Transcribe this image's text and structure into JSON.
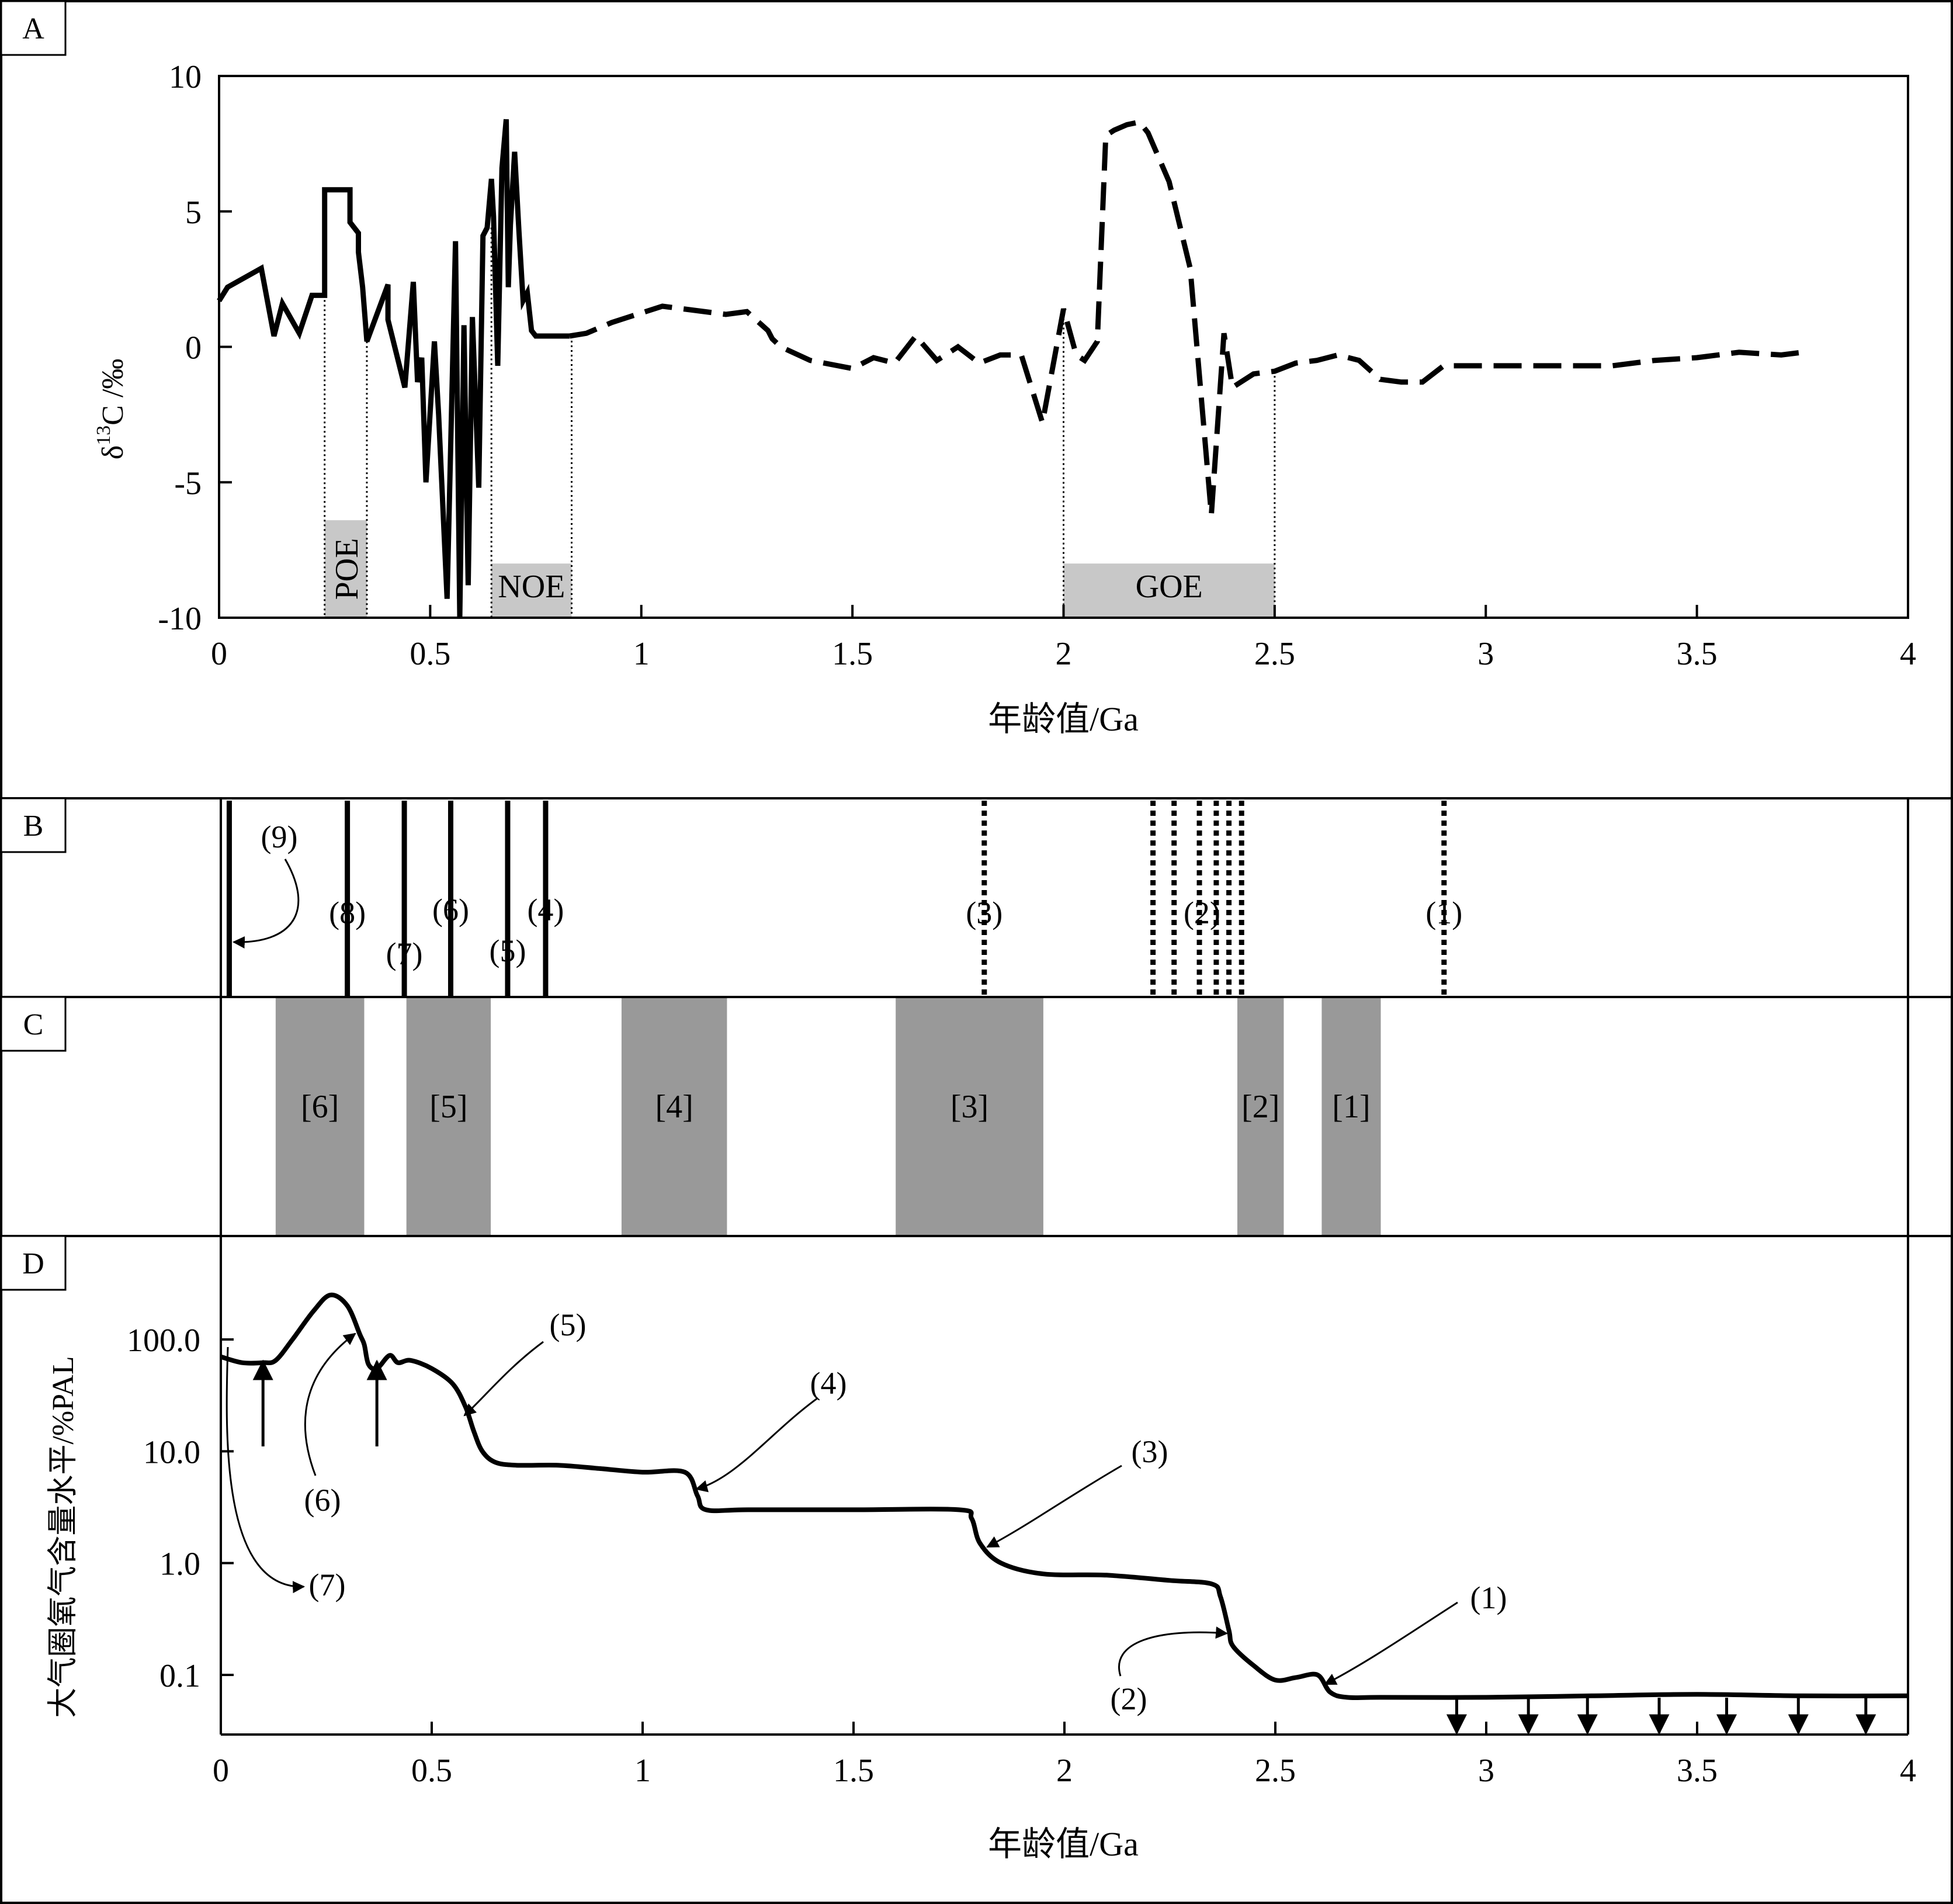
{
  "panels": {
    "a": {
      "tag": "A"
    },
    "b": {
      "tag": "B"
    },
    "c": {
      "tag": "C"
    },
    "d": {
      "tag": "D"
    }
  },
  "chart_data": [
    {
      "panel": "A",
      "type": "line",
      "xlabel": "年龄值/Ga",
      "ylabel": "δ¹³C /‰",
      "ylabel_main": "δ",
      "ylabel_sup": "13",
      "ylabel_rest": "C /‰",
      "xlim": [
        0,
        4
      ],
      "ylim": [
        -10,
        10
      ],
      "xticks": [
        0,
        0.5,
        1,
        1.5,
        2,
        2.5,
        3,
        3.5,
        4
      ],
      "xtick_labels": [
        "0",
        "0.5",
        "1",
        "1.5",
        "2",
        "2.5",
        "3",
        "3.5",
        "4"
      ],
      "yticks": [
        -10,
        -5,
        0,
        5,
        10
      ],
      "ytick_labels": [
        "-10",
        "-5",
        "0",
        "5",
        "10"
      ],
      "bands": [
        {
          "label": "POE",
          "x0": 0.25,
          "x1": 0.35,
          "y_top": -6.4,
          "vertical_label": true
        },
        {
          "label": "NOE",
          "x0": 0.645,
          "x1": 0.835,
          "y_top": -8.0,
          "vertical_label": false
        },
        {
          "label": "GOE",
          "x0": 2.0,
          "x1": 2.5,
          "y_top": -8.0,
          "vertical_label": false
        }
      ],
      "series": [
        {
          "style": "solid",
          "x": [
            0,
            0.02,
            0.1,
            0.13,
            0.15,
            0.19,
            0.22,
            0.24,
            0.25,
            0.25,
            0.26,
            0.31,
            0.31,
            0.33,
            0.33,
            0.34,
            0.35,
            0.4,
            0.4,
            0.44,
            0.46,
            0.47,
            0.48,
            0.49,
            0.51,
            0.52,
            0.54,
            0.56,
            0.57,
            0.58,
            0.59,
            0.6,
            0.615,
            0.625,
            0.635,
            0.645,
            0.65,
            0.66,
            0.67,
            0.68,
            0.685,
            0.69,
            0.7,
            0.71,
            0.72,
            0.73,
            0.74,
            0.75,
            0.76,
            0.77,
            0.78,
            0.8,
            0.83
          ],
          "y": [
            1.7,
            2.2,
            2.9,
            0.4,
            1.6,
            0.5,
            1.9,
            1.9,
            1.9,
            5.8,
            5.8,
            5.8,
            4.6,
            4.2,
            3.5,
            2.2,
            0.2,
            2.3,
            1.0,
            -1.5,
            2.4,
            -1.3,
            -0.4,
            -5.0,
            0.2,
            -2.5,
            -9.3,
            3.9,
            -10.0,
            0.8,
            -8.8,
            1.1,
            -5.2,
            4.1,
            4.4,
            6.2,
            4.8,
            -0.7,
            6.6,
            8.4,
            2.2,
            4.5,
            7.2,
            4.3,
            1.7,
            2.0,
            0.6,
            0.4,
            0.4,
            0.4,
            0.4,
            0.4,
            0.4
          ]
        },
        {
          "style": "dashed",
          "x": [
            0.83,
            0.87,
            0.93,
            0.97,
            1.05,
            1.1,
            1.2,
            1.25,
            1.3,
            1.31,
            1.33,
            1.4,
            1.5,
            1.55,
            1.6,
            1.65,
            1.7,
            1.75,
            1.8,
            1.85,
            1.9,
            1.95,
            2.0,
            2.03,
            2.05,
            2.08,
            2.1,
            2.12,
            2.15,
            2.18,
            2.2,
            2.25,
            2.3,
            2.35,
            2.38,
            2.4,
            2.45,
            2.5,
            2.55,
            2.6,
            2.65,
            2.7,
            2.75,
            2.8,
            2.85,
            2.9,
            3.0,
            3.1,
            3.2,
            3.3,
            3.4,
            3.5,
            3.6,
            3.7,
            3.75
          ],
          "y": [
            0.4,
            0.5,
            0.9,
            1.1,
            1.5,
            1.4,
            1.2,
            1.3,
            0.6,
            0.3,
            0.0,
            -0.5,
            -0.8,
            -0.4,
            -0.6,
            0.4,
            -0.5,
            0.0,
            -0.6,
            -0.3,
            -0.3,
            -2.8,
            1.4,
            -0.3,
            -0.5,
            0.2,
            7.8,
            8.0,
            8.2,
            8.3,
            7.9,
            6.1,
            2.9,
            -6.2,
            0.5,
            -1.5,
            -1.0,
            -0.9,
            -0.6,
            -0.5,
            -0.3,
            -0.5,
            -1.2,
            -1.3,
            -1.3,
            -0.7,
            -0.7,
            -0.7,
            -0.7,
            -0.7,
            -0.5,
            -0.4,
            -0.2,
            -0.3,
            -0.2
          ]
        }
      ]
    },
    {
      "panel": "B",
      "type": "event-lines",
      "events": [
        {
          "label": "(1)",
          "x": 2.9,
          "style": "dotted"
        },
        {
          "label": "(2)",
          "x": [
            2.21,
            2.26,
            2.32,
            2.36,
            2.39,
            2.42
          ],
          "style": "dotted"
        },
        {
          "label": "(3)",
          "x": 1.81,
          "style": "dotted"
        },
        {
          "label": "(4)",
          "x": 0.77,
          "style": "solid"
        },
        {
          "label": "(5)",
          "x": 0.68,
          "style": "solid"
        },
        {
          "label": "(6)",
          "x": 0.545,
          "style": "solid"
        },
        {
          "label": "(7)",
          "x": 0.435,
          "style": "solid"
        },
        {
          "label": "(8)",
          "x": 0.3,
          "style": "solid"
        },
        {
          "label": "(9)",
          "x": 0.02,
          "style": "solid"
        }
      ]
    },
    {
      "panel": "C",
      "type": "intervals",
      "intervals": [
        {
          "label": "[1]",
          "x0": 2.61,
          "x1": 2.75
        },
        {
          "label": "[2]",
          "x0": 2.41,
          "x1": 2.52
        },
        {
          "label": "[3]",
          "x0": 1.6,
          "x1": 1.95
        },
        {
          "label": "[4]",
          "x0": 0.95,
          "x1": 1.2
        },
        {
          "label": "[5]",
          "x0": 0.44,
          "x1": 0.64
        },
        {
          "label": "[6]",
          "x0": 0.13,
          "x1": 0.34
        }
      ]
    },
    {
      "panel": "D",
      "type": "line",
      "xlabel": "年龄值/Ga",
      "ylabel": "大气圈氧气含量水平/%PAL",
      "xlim": [
        0,
        4
      ],
      "ylim": [
        0.025,
        1000
      ],
      "yscale": "log",
      "xticks": [
        0,
        0.5,
        1,
        1.5,
        2,
        2.5,
        3,
        3.5,
        4
      ],
      "xtick_labels": [
        "0",
        "0.5",
        "1",
        "1.5",
        "2",
        "2.5",
        "3",
        "3.5",
        "4"
      ],
      "yticks": [
        0.1,
        1,
        10,
        100
      ],
      "ytick_labels": [
        "0.1",
        "1.0",
        "10.0",
        "100.0"
      ],
      "series": [
        {
          "x": [
            0,
            0.05,
            0.1,
            0.13,
            0.17,
            0.22,
            0.26,
            0.3,
            0.33,
            0.34,
            0.35,
            0.37,
            0.4,
            0.42,
            0.45,
            0.5,
            0.55,
            0.58,
            0.6,
            0.62,
            0.65,
            0.7,
            0.8,
            0.9,
            1.0,
            1.1,
            1.13,
            1.15,
            1.25,
            1.5,
            1.75,
            1.78,
            1.8,
            1.85,
            1.95,
            2.1,
            2.25,
            2.35,
            2.37,
            2.39,
            2.4,
            2.45,
            2.5,
            2.55,
            2.6,
            2.63,
            2.67,
            2.75,
            3.0,
            3.25,
            3.5,
            3.75,
            4.0
          ],
          "y": [
            70,
            62,
            62,
            65,
            100,
            180,
            250,
            200,
            110,
            90,
            60,
            55,
            72,
            62,
            65,
            55,
            40,
            25,
            15,
            10,
            8,
            7.5,
            7.5,
            7,
            6.5,
            6.5,
            4.0,
            3.0,
            3.0,
            3.0,
            3.0,
            2.5,
            1.5,
            1.0,
            0.8,
            0.78,
            0.7,
            0.65,
            0.5,
            0.25,
            0.18,
            0.12,
            0.09,
            0.095,
            0.1,
            0.07,
            0.063,
            0.063,
            0.063,
            0.065,
            0.067,
            0.065,
            0.065
          ]
        }
      ],
      "annotations": [
        "(1)",
        "(2)",
        "(3)",
        "(4)",
        "(5)",
        "(6)",
        "(7)"
      ],
      "upward_arrows_at": [
        0.1,
        0.37
      ],
      "downward_arrows_at": [
        2.93,
        3.1,
        3.24,
        3.41,
        3.57,
        3.74,
        3.9
      ]
    }
  ]
}
